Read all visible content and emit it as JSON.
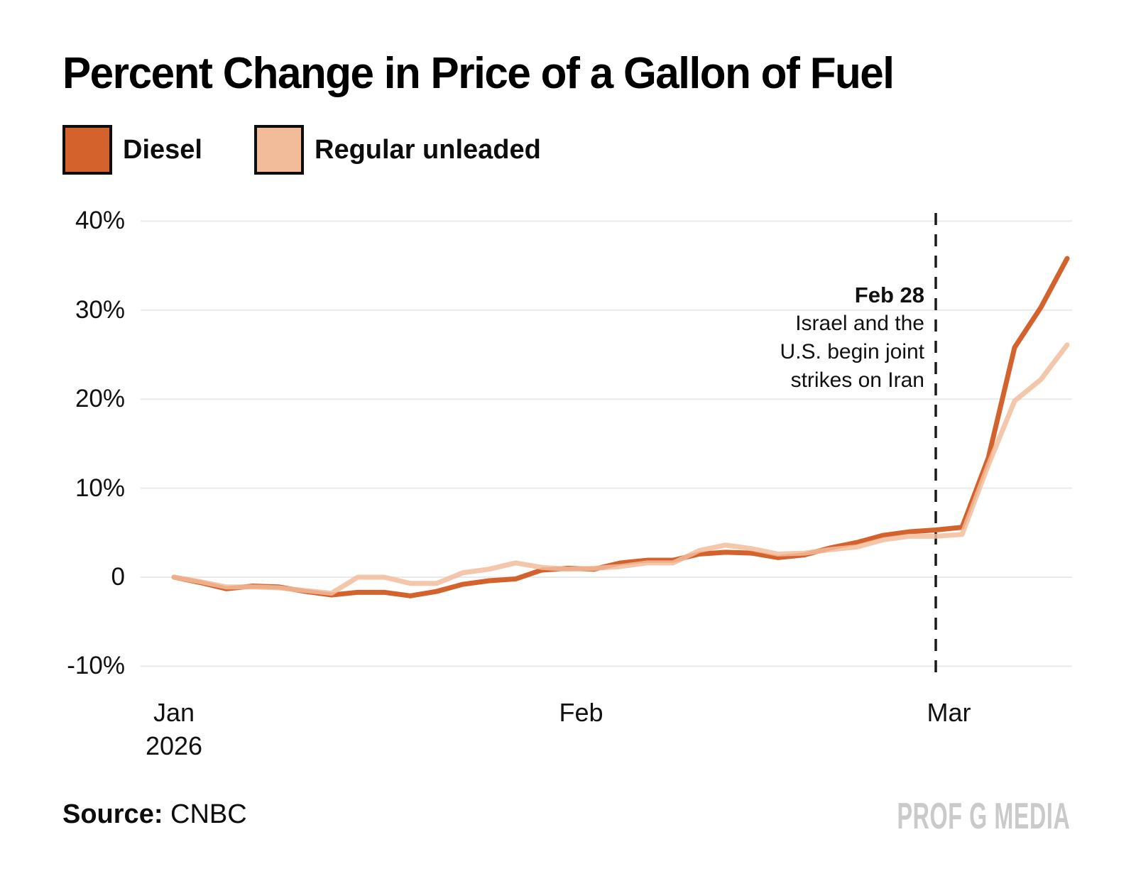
{
  "title": "Percent Change in Price of a Gallon of Fuel",
  "legend": [
    {
      "label": "Diesel",
      "color": "#D4622D"
    },
    {
      "label": "Regular unleaded",
      "color": "#F2BC9B"
    }
  ],
  "chart_data": {
    "type": "line",
    "title": "Percent Change in Price of a Gallon of Fuel",
    "xlabel": "",
    "ylabel": "",
    "ylim": [
      -10,
      40
    ],
    "grid": true,
    "x": [
      "Jan 1",
      "Jan 3",
      "Jan 5",
      "Jan 7",
      "Jan 9",
      "Jan 11",
      "Jan 13",
      "Jan 15",
      "Jan 17",
      "Jan 19",
      "Jan 21",
      "Jan 23",
      "Jan 25",
      "Jan 27",
      "Jan 29",
      "Jan 31",
      "Feb 2",
      "Feb 4",
      "Feb 6",
      "Feb 8",
      "Feb 10",
      "Feb 12",
      "Feb 14",
      "Feb 16",
      "Feb 18",
      "Feb 20",
      "Feb 22",
      "Feb 24",
      "Feb 26",
      "Feb 28",
      "Mar 2",
      "Mar 4",
      "Mar 6",
      "Mar 8",
      "Mar 10"
    ],
    "series": [
      {
        "name": "Diesel",
        "color": "#D4622D",
        "values": [
          0,
          -0.6,
          -1.3,
          -1.0,
          -1.1,
          -1.6,
          -2.0,
          -1.7,
          -1.7,
          -2.1,
          -1.6,
          -0.8,
          -0.4,
          -0.2,
          0.8,
          1.0,
          0.9,
          1.6,
          1.9,
          1.9,
          2.6,
          2.8,
          2.7,
          2.2,
          2.5,
          3.3,
          3.9,
          4.7,
          5.1,
          5.3,
          5.6,
          13.4,
          25.8,
          30.3,
          35.8
        ]
      },
      {
        "name": "Regular unleaded",
        "color": "#F2BC9B",
        "values": [
          0,
          -0.5,
          -1.1,
          -1.1,
          -1.2,
          -1.5,
          -1.8,
          0.0,
          0.0,
          -0.7,
          -0.7,
          0.5,
          0.9,
          1.6,
          1.1,
          0.9,
          1.0,
          1.2,
          1.6,
          1.6,
          3.0,
          3.6,
          3.2,
          2.6,
          2.7,
          3.1,
          3.4,
          4.2,
          4.6,
          4.6,
          4.8,
          12.6,
          19.8,
          22.2,
          26.1
        ]
      }
    ],
    "y_ticks": [
      {
        "label": "40%",
        "value": 40
      },
      {
        "label": "30%",
        "value": 30
      },
      {
        "label": "20%",
        "value": 20
      },
      {
        "label": "10%",
        "value": 10
      },
      {
        "label": "0",
        "value": 0
      },
      {
        "label": "-10%",
        "value": -10
      }
    ],
    "x_ticks": [
      {
        "label": "Jan",
        "sublabel": "2026",
        "index": 0
      },
      {
        "label": "Feb",
        "index": 15.5
      },
      {
        "label": "Mar",
        "index": 29.5
      }
    ],
    "annotation": {
      "title": "Feb 28",
      "lines": [
        "Israel and the",
        "U.S. begin joint",
        "strikes on Iran"
      ],
      "x_index": 29
    },
    "legend_position": "top-left"
  },
  "source": {
    "prefix": "Source:",
    "name": "CNBC"
  },
  "watermark": "PROF G MEDIA"
}
